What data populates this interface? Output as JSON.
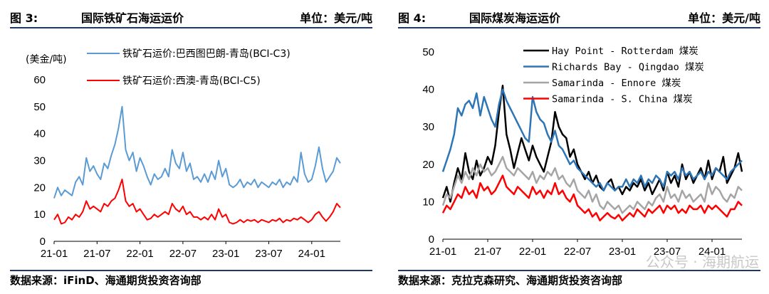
{
  "left": {
    "fig_label": "图 3:",
    "title": "国际铁矿石海运运价",
    "unit": "单位：美元/吨",
    "source": "数据来源：iFinD、海通期货投资咨询部"
  },
  "right": {
    "fig_label": "图 4:",
    "title": "国际煤炭海运运价",
    "unit": "单位：美元/吨",
    "source": "数据来源：克拉克森研究、海通期货投资咨询部",
    "watermark": "公众号 · 海期航运"
  },
  "chart_data": [
    {
      "type": "line",
      "ylabel": "(美金/吨)",
      "ylim": [
        0,
        60
      ],
      "yticks": [
        0,
        10,
        20,
        30,
        40,
        50,
        60
      ],
      "x_tick_labels": [
        "21-01",
        "21-07",
        "22-01",
        "22-07",
        "23-01",
        "23-07",
        "24-01"
      ],
      "x_tick_positions": [
        0,
        6,
        12,
        18,
        24,
        30,
        36
      ],
      "xlim": [
        0,
        40
      ],
      "grid": false,
      "legend_position": "top",
      "series": [
        {
          "name": "铁矿石运价:巴西图巴朗-青岛(BCI-C3)",
          "color": "#5b9bd5",
          "x": [
            0,
            0.5,
            1,
            1.5,
            2,
            2.5,
            3,
            3.5,
            4,
            4.5,
            5,
            5.5,
            6,
            6.5,
            7,
            7.5,
            8,
            8.5,
            9,
            9.5,
            10,
            10.5,
            11,
            11.5,
            12,
            12.5,
            13,
            13.5,
            14,
            14.5,
            15,
            15.5,
            16,
            16.5,
            17,
            17.5,
            18,
            18.5,
            19,
            19.5,
            20,
            20.5,
            21,
            21.5,
            22,
            22.5,
            23,
            23.5,
            24,
            24.5,
            25,
            25.5,
            26,
            26.5,
            27,
            27.5,
            28,
            28.5,
            29,
            29.5,
            30,
            30.5,
            31,
            31.5,
            32,
            32.5,
            33,
            33.5,
            34,
            34.5,
            35,
            35.5,
            36,
            36.5,
            37,
            37.5,
            38,
            38.5,
            39,
            39.5,
            40
          ],
          "values": [
            16,
            20,
            17,
            19,
            18,
            17,
            22,
            24,
            21,
            31,
            26,
            28,
            25,
            23,
            29,
            27,
            32,
            36,
            42,
            50,
            34,
            30,
            33,
            26,
            31,
            28,
            24,
            21,
            25,
            23,
            24,
            27,
            24,
            34,
            29,
            27,
            33,
            26,
            29,
            23,
            24,
            22,
            25,
            22,
            26,
            23,
            30,
            24,
            27,
            21,
            20,
            21,
            23,
            20,
            22,
            21,
            23,
            20,
            22,
            21,
            20,
            22,
            21,
            23,
            20,
            22,
            21,
            24,
            22,
            33,
            25,
            22,
            23,
            28,
            35,
            27,
            22,
            24,
            26,
            31,
            29
          ]
        },
        {
          "name": "铁矿石运价:西澳-青岛(BCI-C5)",
          "color": "#ff0000",
          "x": [
            0,
            0.5,
            1,
            1.5,
            2,
            2.5,
            3,
            3.5,
            4,
            4.5,
            5,
            5.5,
            6,
            6.5,
            7,
            7.5,
            8,
            8.5,
            9,
            9.5,
            10,
            10.5,
            11,
            11.5,
            12,
            12.5,
            13,
            13.5,
            14,
            14.5,
            15,
            15.5,
            16,
            16.5,
            17,
            17.5,
            18,
            18.5,
            19,
            19.5,
            20,
            20.5,
            21,
            21.5,
            22,
            22.5,
            23,
            23.5,
            24,
            24.5,
            25,
            25.5,
            26,
            26.5,
            27,
            27.5,
            28,
            28.5,
            29,
            29.5,
            30,
            30.5,
            31,
            31.5,
            32,
            32.5,
            33,
            33.5,
            34,
            34.5,
            35,
            35.5,
            36,
            36.5,
            37,
            37.5,
            38,
            38.5,
            39,
            39.5,
            40
          ],
          "values": [
            8,
            10,
            6.5,
            7,
            9,
            8,
            10,
            9,
            11,
            15,
            12,
            13,
            12,
            11,
            14,
            13,
            15,
            16,
            19,
            23,
            15,
            13,
            14,
            11,
            12,
            10,
            8,
            8.5,
            10,
            9,
            10,
            11,
            10,
            14,
            12,
            11,
            13,
            10,
            11,
            9,
            9,
            8,
            9,
            8,
            10,
            8,
            12,
            9,
            10,
            7,
            6.5,
            7,
            8,
            7,
            8,
            7.5,
            8,
            7,
            8,
            7.5,
            7,
            8,
            7.5,
            8.5,
            7,
            8,
            7.5,
            8.5,
            8,
            9,
            8,
            7,
            8,
            10,
            11,
            9,
            7.5,
            9,
            11,
            14,
            12.5
          ]
        }
      ]
    },
    {
      "type": "line",
      "ylim": [
        0,
        50
      ],
      "yticks": [
        0,
        10,
        20,
        30,
        40,
        50
      ],
      "x_tick_labels": [
        "21-01",
        "21-07",
        "22-01",
        "22-07",
        "23-01",
        "23-07",
        "24-01"
      ],
      "x_tick_positions": [
        0,
        6,
        12,
        18,
        24,
        30,
        36
      ],
      "xlim": [
        0,
        40
      ],
      "grid": false,
      "legend_position": "top-right",
      "series": [
        {
          "name": "Hay Point - Rotterdam 煤炭",
          "color": "#000000",
          "x": [
            0,
            0.5,
            1,
            1.5,
            2,
            2.5,
            3,
            3.5,
            4,
            4.5,
            5,
            5.5,
            6,
            6.5,
            7,
            7.5,
            8,
            8.5,
            9,
            9.5,
            10,
            10.5,
            11,
            11.5,
            12,
            12.5,
            13,
            13.5,
            14,
            14.5,
            15,
            15.5,
            16,
            16.5,
            17,
            17.5,
            18,
            18.5,
            19,
            19.5,
            20,
            20.5,
            21,
            21.5,
            22,
            22.5,
            23,
            23.5,
            24,
            24.5,
            25,
            25.5,
            26,
            26.5,
            27,
            27.5,
            28,
            28.5,
            29,
            29.5,
            30,
            30.5,
            31,
            31.5,
            32,
            32.5,
            33,
            33.5,
            34,
            34.5,
            35,
            35.5,
            36,
            36.5,
            37,
            37.5,
            38,
            38.5,
            39,
            39.5,
            40
          ],
          "values": [
            11,
            14,
            10,
            15,
            19,
            16,
            23,
            18,
            16,
            21,
            17,
            19,
            22,
            20,
            25,
            34,
            41,
            28,
            24,
            19,
            23,
            27,
            24,
            21,
            25,
            22,
            20,
            18,
            22,
            26,
            34,
            30,
            28,
            27,
            22,
            24,
            20,
            18,
            16,
            18,
            15,
            17,
            14,
            13,
            15,
            16,
            13,
            14,
            12,
            14,
            13,
            15,
            14,
            16,
            13,
            15,
            12,
            14,
            16,
            13,
            18,
            15,
            17,
            14,
            20,
            16,
            18,
            15,
            17,
            19,
            16,
            21,
            16,
            19,
            18,
            22,
            15,
            17,
            19,
            23,
            18
          ]
        },
        {
          "name": "Richards Bay - Qingdao 煤炭",
          "color": "#2e75b6",
          "x": [
            0,
            0.5,
            1,
            1.5,
            2,
            2.5,
            3,
            3.5,
            4,
            4.5,
            5,
            5.5,
            6,
            6.5,
            7,
            7.5,
            8,
            8.5,
            9,
            9.5,
            10,
            10.5,
            11,
            11.5,
            12,
            12.5,
            13,
            13.5,
            14,
            14.5,
            15,
            15.5,
            16,
            16.5,
            17,
            17.5,
            18,
            18.5,
            19,
            19.5,
            20,
            20.5,
            21,
            21.5,
            22,
            22.5,
            23,
            23.5,
            24,
            24.5,
            25,
            25.5,
            26,
            26.5,
            27,
            27.5,
            28,
            28.5,
            29,
            29.5,
            30,
            30.5,
            31,
            31.5,
            32,
            32.5,
            33,
            33.5,
            34,
            34.5,
            35,
            35.5,
            36,
            36.5,
            37,
            37.5,
            38,
            38.5,
            39,
            39.5,
            40
          ],
          "values": [
            18,
            21,
            24,
            28,
            35,
            33,
            36,
            37,
            35,
            39,
            33,
            38,
            35,
            32,
            30,
            36,
            40,
            37,
            35,
            33,
            31,
            29,
            27,
            26,
            38,
            34,
            32,
            31,
            28,
            26,
            29,
            25,
            24,
            22,
            20,
            21,
            19,
            18,
            17,
            16,
            15,
            14,
            15,
            13,
            15,
            14,
            13,
            14,
            14,
            16,
            14,
            16,
            15,
            17,
            14,
            16,
            15,
            17,
            16,
            14,
            18,
            17,
            18,
            16,
            19,
            17,
            18,
            16,
            17,
            18,
            16,
            18,
            17,
            19,
            18,
            17,
            16,
            18,
            19,
            20,
            21
          ]
        },
        {
          "name": "Samarinda - Ennore 煤炭",
          "color": "#a5a5a5",
          "x": [
            0,
            0.5,
            1,
            1.5,
            2,
            2.5,
            3,
            3.5,
            4,
            4.5,
            5,
            5.5,
            6,
            6.5,
            7,
            7.5,
            8,
            8.5,
            9,
            9.5,
            10,
            10.5,
            11,
            11.5,
            12,
            12.5,
            13,
            13.5,
            14,
            14.5,
            15,
            15.5,
            16,
            16.5,
            17,
            17.5,
            18,
            18.5,
            19,
            19.5,
            20,
            20.5,
            21,
            21.5,
            22,
            22.5,
            23,
            23.5,
            24,
            24.5,
            25,
            25.5,
            26,
            26.5,
            27,
            27.5,
            28,
            28.5,
            29,
            29.5,
            30,
            30.5,
            31,
            31.5,
            32,
            32.5,
            33,
            33.5,
            34,
            34.5,
            35,
            35.5,
            36,
            36.5,
            37,
            37.5,
            38,
            38.5,
            39,
            39.5,
            40
          ],
          "values": [
            9,
            12,
            11,
            14,
            17,
            15,
            18,
            16,
            19,
            17,
            20,
            18,
            19,
            17,
            18,
            20,
            22,
            19,
            18,
            17,
            19,
            18,
            17,
            16,
            18,
            15,
            17,
            16,
            18,
            17,
            19,
            16,
            17,
            15,
            14,
            16,
            13,
            12,
            11,
            13,
            10,
            12,
            9,
            8,
            10,
            9,
            8,
            9,
            7,
            8,
            9,
            8,
            10,
            9,
            8,
            10,
            9,
            11,
            12,
            10,
            14,
            11,
            12,
            10,
            13,
            11,
            12,
            10,
            11,
            12,
            10,
            15,
            12,
            14,
            13,
            11,
            10,
            12,
            11,
            14,
            13
          ]
        },
        {
          "name": "Samarinda - S. China 煤炭",
          "color": "#ff0000",
          "x": [
            0,
            0.5,
            1,
            1.5,
            2,
            2.5,
            3,
            3.5,
            4,
            4.5,
            5,
            5.5,
            6,
            6.5,
            7,
            7.5,
            8,
            8.5,
            9,
            9.5,
            10,
            10.5,
            11,
            11.5,
            12,
            12.5,
            13,
            13.5,
            14,
            14.5,
            15,
            15.5,
            16,
            16.5,
            17,
            17.5,
            18,
            18.5,
            19,
            19.5,
            20,
            20.5,
            21,
            21.5,
            22,
            22.5,
            23,
            23.5,
            24,
            24.5,
            25,
            25.5,
            26,
            26.5,
            27,
            27.5,
            28,
            28.5,
            29,
            29.5,
            30,
            30.5,
            31,
            31.5,
            32,
            32.5,
            33,
            33.5,
            34,
            34.5,
            35,
            35.5,
            36,
            36.5,
            37,
            37.5,
            38,
            38.5,
            39,
            39.5,
            40
          ],
          "values": [
            7,
            9,
            8,
            10,
            12,
            11,
            14,
            12,
            13,
            11,
            15,
            13,
            14,
            12,
            13,
            15,
            17,
            14,
            13,
            12,
            14,
            13,
            12,
            11,
            14,
            12,
            13,
            11,
            13,
            12,
            15,
            12,
            13,
            11,
            10,
            12,
            9,
            8,
            7,
            8,
            6,
            7,
            5,
            6,
            7,
            6,
            5.5,
            6.5,
            5,
            6,
            7,
            6,
            8,
            7,
            6,
            8,
            7,
            8,
            9,
            7,
            9,
            8,
            9,
            7,
            8,
            7,
            9,
            8,
            8,
            9,
            7,
            9,
            8,
            9,
            8,
            7,
            6,
            8,
            8,
            10,
            9
          ]
        }
      ]
    }
  ]
}
